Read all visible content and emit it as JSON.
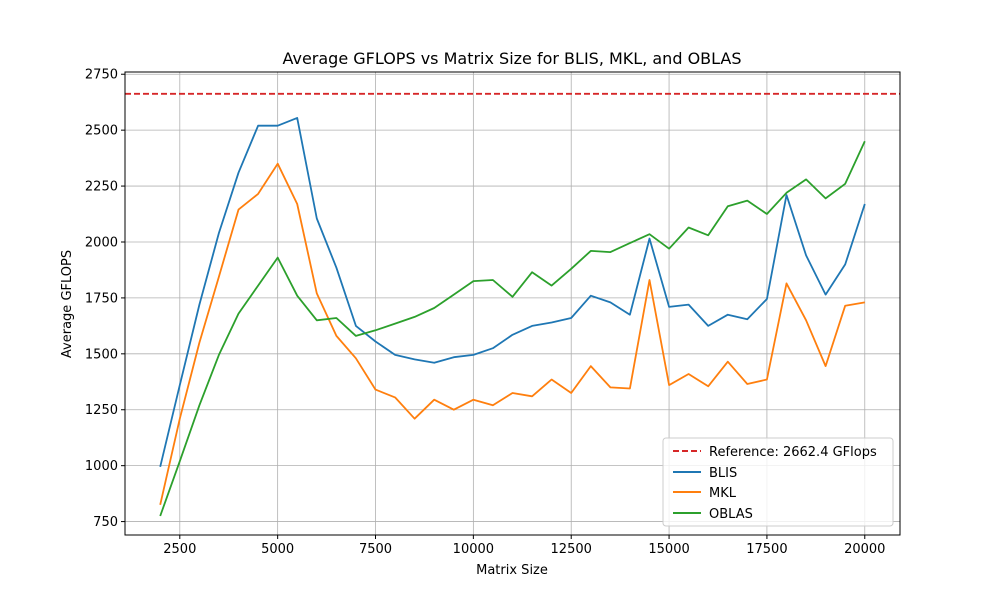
{
  "chart_data": {
    "type": "line",
    "title": "Average GFLOPS vs Matrix Size for BLIS, MKL, and OBLAS",
    "xlabel": "Matrix Size",
    "ylabel": "Average GFLOPS",
    "xlim": [
      1100,
      20900
    ],
    "ylim": [
      690,
      2760
    ],
    "xticks": [
      2500,
      5000,
      7500,
      10000,
      12500,
      15000,
      17500,
      20000
    ],
    "yticks": [
      750,
      1000,
      1250,
      1500,
      1750,
      2000,
      2250,
      2500,
      2750
    ],
    "grid": true,
    "legend_position": "lower-right",
    "reference": {
      "label": "Reference: 2662.4 GFlops",
      "value": 2662.4,
      "color": "#d62728",
      "style": "dashed"
    },
    "x": [
      2000,
      2500,
      3000,
      3500,
      4000,
      4500,
      5000,
      5500,
      6000,
      6500,
      7000,
      7500,
      8000,
      8500,
      9000,
      9500,
      10000,
      10500,
      11000,
      11500,
      12000,
      12500,
      13000,
      13500,
      14000,
      14500,
      15000,
      15500,
      16000,
      16500,
      17000,
      17500,
      18000,
      18500,
      19000,
      19500,
      20000
    ],
    "series": [
      {
        "name": "BLIS",
        "color": "#1f77b4",
        "values": [
          995,
          1360,
          1720,
          2040,
          2310,
          2520,
          2520,
          2555,
          2105,
          1885,
          1625,
          1555,
          1495,
          1475,
          1460,
          1485,
          1495,
          1525,
          1585,
          1625,
          1640,
          1660,
          1760,
          1730,
          1675,
          2015,
          1710,
          1720,
          1625,
          1675,
          1655,
          1745,
          2210,
          1940,
          1765,
          1900,
          2170
        ]
      },
      {
        "name": "MKL",
        "color": "#ff7f0e",
        "values": [
          825,
          1210,
          1550,
          1845,
          2145,
          2215,
          2350,
          2170,
          1770,
          1580,
          1480,
          1340,
          1305,
          1210,
          1295,
          1250,
          1295,
          1270,
          1325,
          1310,
          1385,
          1325,
          1445,
          1350,
          1345,
          1830,
          1360,
          1410,
          1355,
          1465,
          1365,
          1385,
          1815,
          1650,
          1445,
          1715,
          1730
        ]
      },
      {
        "name": "OBLAS",
        "color": "#2ca02c",
        "values": [
          775,
          1020,
          1270,
          1495,
          1680,
          1805,
          1930,
          1760,
          1650,
          1660,
          1580,
          1605,
          1635,
          1665,
          1705,
          1765,
          1825,
          1830,
          1755,
          1865,
          1805,
          1880,
          1960,
          1955,
          1995,
          2035,
          1970,
          2065,
          2030,
          2160,
          2185,
          2125,
          2220,
          2280,
          2195,
          2260,
          2450
        ]
      }
    ]
  }
}
